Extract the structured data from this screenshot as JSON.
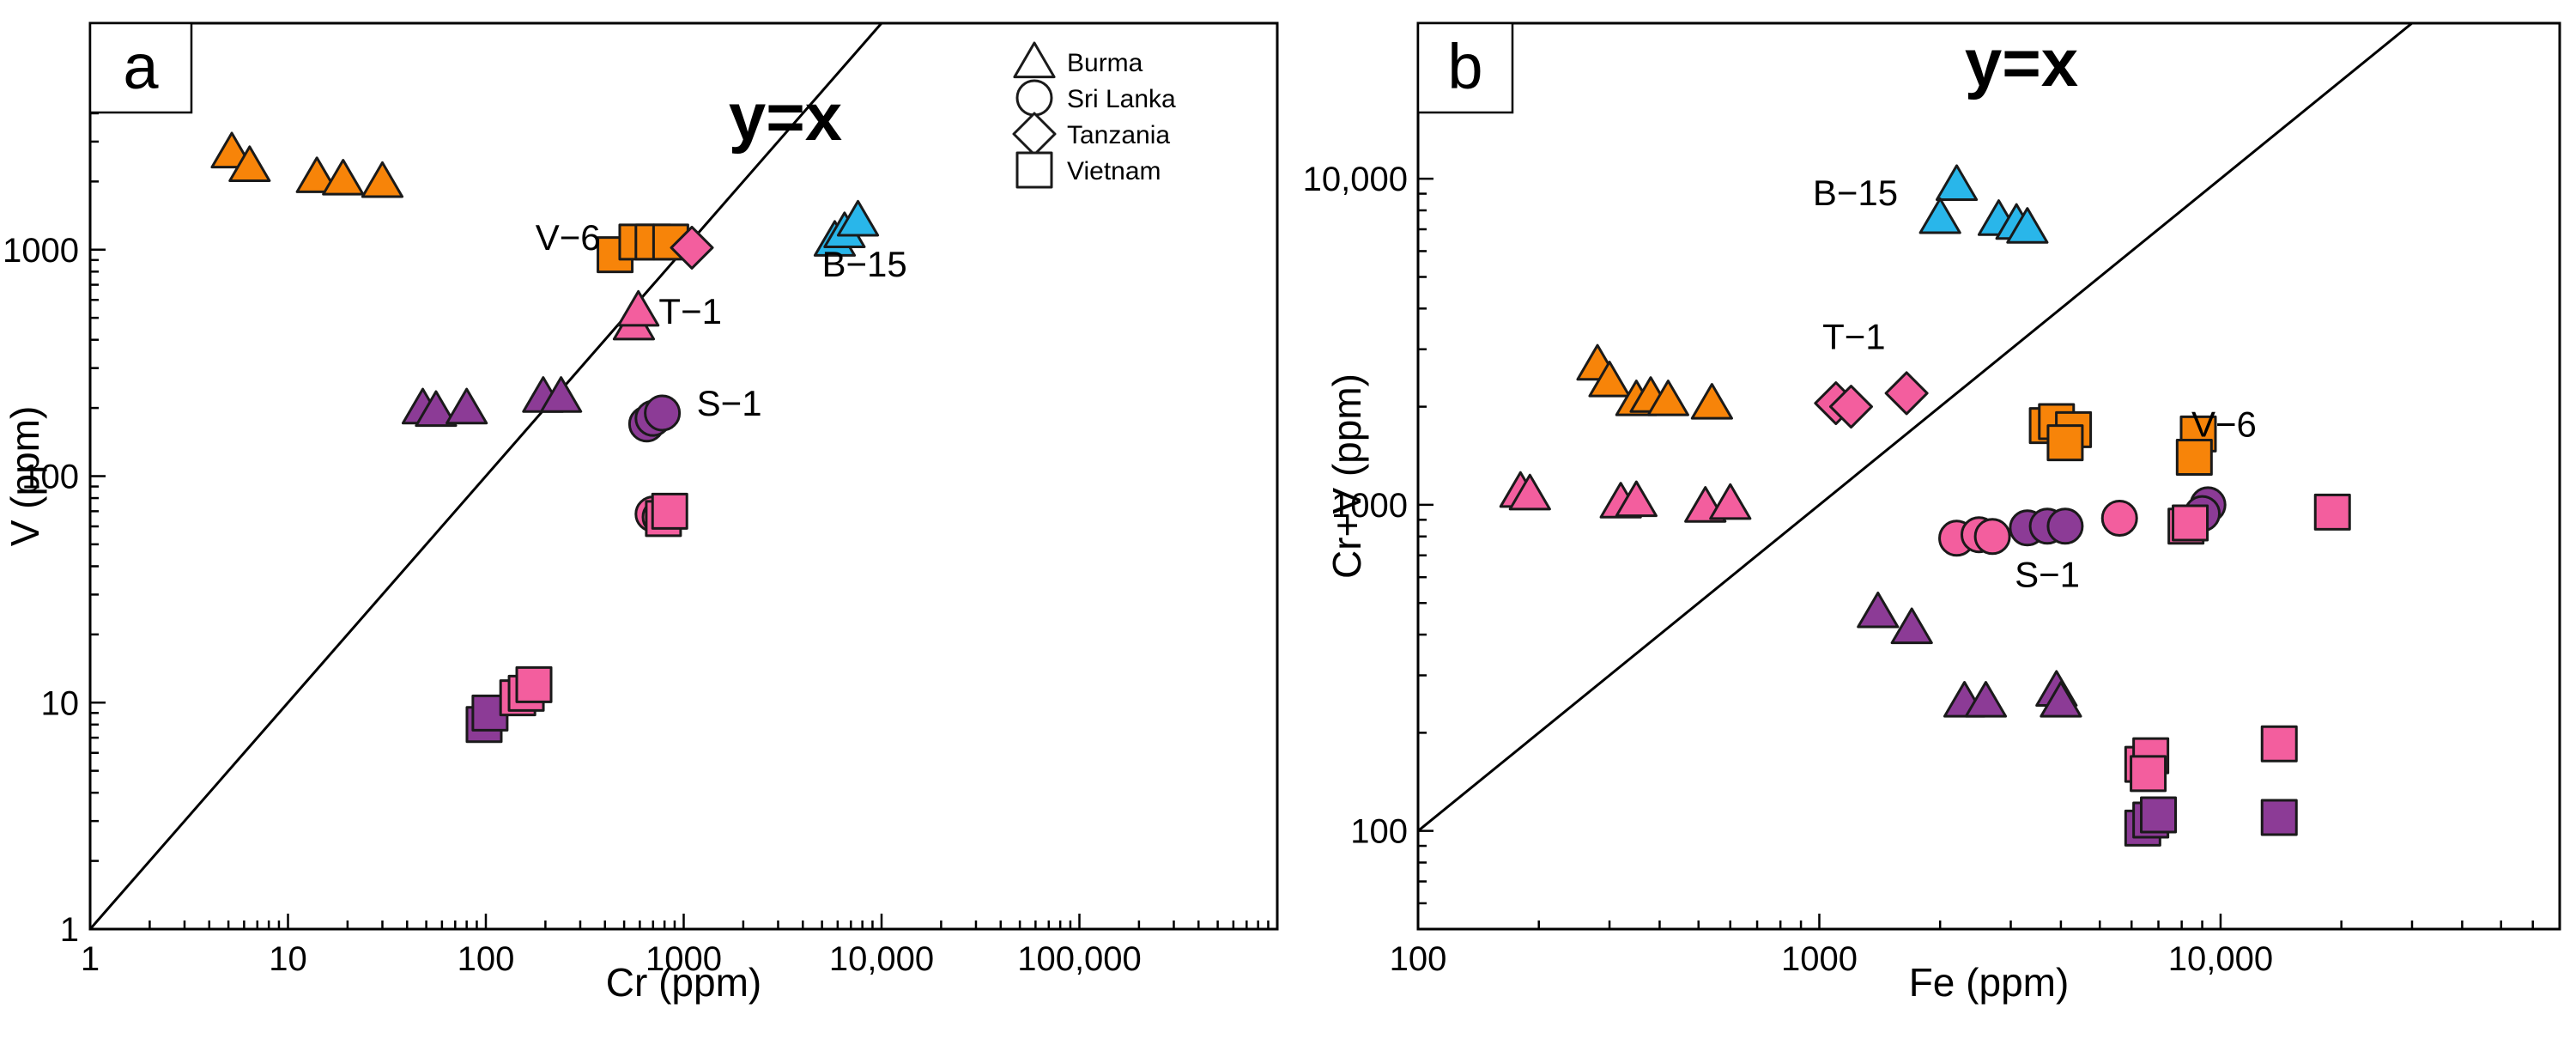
{
  "colors": {
    "orange": "#f78409",
    "blue": "#29b6ea",
    "pink": "#f35e9e",
    "purple": "#8c3b96",
    "outline": "#1a1a1a",
    "legend_fill": "#ffffff"
  },
  "legend": [
    {
      "label": "Burma",
      "marker": "triangle"
    },
    {
      "label": "Sri Lanka",
      "marker": "circle"
    },
    {
      "label": "Tanzania",
      "marker": "diamond"
    },
    {
      "label": "Vietnam",
      "marker": "square"
    }
  ],
  "chart_data": [
    {
      "panel": "a",
      "type": "scatter",
      "xscale": "log",
      "yscale": "log",
      "xlabel": "Cr (ppm)",
      "ylabel": "V (ppm)",
      "xlim": [
        1,
        1000000
      ],
      "ylim": [
        1,
        10000
      ],
      "xticks": [
        1,
        10,
        100,
        1000,
        10000,
        100000
      ],
      "xtick_labels": [
        "1",
        "10",
        "100",
        "1000",
        "10,000",
        "100,000"
      ],
      "yticks": [
        1,
        10,
        100,
        1000
      ],
      "ytick_labels": [
        "1",
        "10",
        "100",
        "1000"
      ],
      "reference_line": {
        "label": "y=x",
        "from": [
          1,
          1
        ],
        "to": [
          10000,
          10000
        ]
      },
      "points": [
        {
          "x": 5.2,
          "y": 2700,
          "marker": "triangle",
          "color": "orange"
        },
        {
          "x": 6.4,
          "y": 2350,
          "marker": "triangle",
          "color": "orange"
        },
        {
          "x": 14,
          "y": 2100,
          "marker": "triangle",
          "color": "orange"
        },
        {
          "x": 19,
          "y": 2050,
          "marker": "triangle",
          "color": "orange"
        },
        {
          "x": 30,
          "y": 2000,
          "marker": "triangle",
          "color": "orange"
        },
        {
          "x": 450,
          "y": 950,
          "marker": "square",
          "color": "orange"
        },
        {
          "x": 580,
          "y": 1080,
          "marker": "square",
          "color": "orange"
        },
        {
          "x": 700,
          "y": 1080,
          "marker": "square",
          "color": "orange"
        },
        {
          "x": 860,
          "y": 1080,
          "marker": "square",
          "color": "orange"
        },
        {
          "x": 1100,
          "y": 1020,
          "marker": "diamond",
          "color": "pink"
        },
        {
          "x": 560,
          "y": 470,
          "marker": "triangle",
          "color": "pink"
        },
        {
          "x": 590,
          "y": 540,
          "marker": "triangle",
          "color": "pink"
        },
        {
          "x": 5800,
          "y": 1100,
          "marker": "triangle",
          "color": "blue"
        },
        {
          "x": 6500,
          "y": 1200,
          "marker": "triangle",
          "color": "blue"
        },
        {
          "x": 7600,
          "y": 1350,
          "marker": "triangle",
          "color": "blue"
        },
        {
          "x": 48,
          "y": 200,
          "marker": "triangle",
          "color": "purple"
        },
        {
          "x": 56,
          "y": 195,
          "marker": "triangle",
          "color": "purple"
        },
        {
          "x": 80,
          "y": 200,
          "marker": "triangle",
          "color": "purple"
        },
        {
          "x": 195,
          "y": 225,
          "marker": "triangle",
          "color": "purple"
        },
        {
          "x": 240,
          "y": 225,
          "marker": "triangle",
          "color": "purple"
        },
        {
          "x": 650,
          "y": 170,
          "marker": "circle",
          "color": "purple"
        },
        {
          "x": 700,
          "y": 180,
          "marker": "circle",
          "color": "purple"
        },
        {
          "x": 780,
          "y": 190,
          "marker": "circle",
          "color": "purple"
        },
        {
          "x": 700,
          "y": 68,
          "marker": "circle",
          "color": "pink"
        },
        {
          "x": 760,
          "y": 66,
          "marker": "circle",
          "color": "pink"
        },
        {
          "x": 790,
          "y": 65,
          "marker": "square",
          "color": "pink"
        },
        {
          "x": 850,
          "y": 70,
          "marker": "square",
          "color": "pink"
        },
        {
          "x": 98,
          "y": 8,
          "marker": "square",
          "color": "purple"
        },
        {
          "x": 105,
          "y": 9,
          "marker": "square",
          "color": "purple"
        },
        {
          "x": 145,
          "y": 10.5,
          "marker": "square",
          "color": "pink"
        },
        {
          "x": 160,
          "y": 11,
          "marker": "square",
          "color": "pink"
        },
        {
          "x": 175,
          "y": 12,
          "marker": "square",
          "color": "pink"
        }
      ],
      "annotations": [
        {
          "text": "V−6",
          "x": 260,
          "y": 1000
        },
        {
          "text": "T−1",
          "x": 1080,
          "y": 470
        },
        {
          "text": "B−15",
          "x": 8200,
          "y": 760
        },
        {
          "text": "S−1",
          "x": 1700,
          "y": 185
        }
      ]
    },
    {
      "panel": "b",
      "type": "scatter",
      "xscale": "log",
      "yscale": "log",
      "xlabel": "Fe (ppm)",
      "ylabel": "Cr+V (ppm)",
      "xlim": [
        100,
        70000
      ],
      "ylim": [
        50,
        30000
      ],
      "xticks": [
        100,
        1000,
        10000
      ],
      "xtick_labels": [
        "100",
        "1000",
        "10,000"
      ],
      "yticks": [
        100,
        1000,
        10000
      ],
      "ytick_labels": [
        "100",
        "1000",
        "10,000"
      ],
      "reference_line": {
        "label": "y=x",
        "from": [
          100,
          100
        ],
        "to": [
          30000,
          30000
        ]
      },
      "points": [
        {
          "x": 2200,
          "y": 9600,
          "marker": "triangle",
          "color": "blue"
        },
        {
          "x": 2000,
          "y": 7600,
          "marker": "triangle",
          "color": "blue"
        },
        {
          "x": 2800,
          "y": 7500,
          "marker": "triangle",
          "color": "blue"
        },
        {
          "x": 3100,
          "y": 7300,
          "marker": "triangle",
          "color": "blue"
        },
        {
          "x": 3300,
          "y": 7100,
          "marker": "triangle",
          "color": "blue"
        },
        {
          "x": 280,
          "y": 2700,
          "marker": "triangle",
          "color": "orange"
        },
        {
          "x": 300,
          "y": 2400,
          "marker": "triangle",
          "color": "orange"
        },
        {
          "x": 350,
          "y": 2100,
          "marker": "triangle",
          "color": "orange"
        },
        {
          "x": 380,
          "y": 2150,
          "marker": "triangle",
          "color": "orange"
        },
        {
          "x": 420,
          "y": 2100,
          "marker": "triangle",
          "color": "orange"
        },
        {
          "x": 540,
          "y": 2050,
          "marker": "triangle",
          "color": "orange"
        },
        {
          "x": 180,
          "y": 1100,
          "marker": "triangle",
          "color": "pink"
        },
        {
          "x": 190,
          "y": 1080,
          "marker": "triangle",
          "color": "pink"
        },
        {
          "x": 320,
          "y": 1020,
          "marker": "triangle",
          "color": "pink"
        },
        {
          "x": 350,
          "y": 1030,
          "marker": "triangle",
          "color": "pink"
        },
        {
          "x": 520,
          "y": 990,
          "marker": "triangle",
          "color": "pink"
        },
        {
          "x": 600,
          "y": 1010,
          "marker": "triangle",
          "color": "pink"
        },
        {
          "x": 1100,
          "y": 2050,
          "marker": "diamond",
          "color": "pink"
        },
        {
          "x": 1200,
          "y": 2000,
          "marker": "diamond",
          "color": "pink"
        },
        {
          "x": 1650,
          "y": 2200,
          "marker": "diamond",
          "color": "pink"
        },
        {
          "x": 3700,
          "y": 1750,
          "marker": "square",
          "color": "orange"
        },
        {
          "x": 3900,
          "y": 1800,
          "marker": "square",
          "color": "orange"
        },
        {
          "x": 4300,
          "y": 1700,
          "marker": "square",
          "color": "orange"
        },
        {
          "x": 4100,
          "y": 1550,
          "marker": "square",
          "color": "orange"
        },
        {
          "x": 8800,
          "y": 1650,
          "marker": "square",
          "color": "orange"
        },
        {
          "x": 8600,
          "y": 1400,
          "marker": "square",
          "color": "orange"
        },
        {
          "x": 2200,
          "y": 790,
          "marker": "circle",
          "color": "pink"
        },
        {
          "x": 2500,
          "y": 810,
          "marker": "circle",
          "color": "pink"
        },
        {
          "x": 2700,
          "y": 800,
          "marker": "circle",
          "color": "pink"
        },
        {
          "x": 3300,
          "y": 850,
          "marker": "circle",
          "color": "purple"
        },
        {
          "x": 3700,
          "y": 860,
          "marker": "circle",
          "color": "purple"
        },
        {
          "x": 4100,
          "y": 860,
          "marker": "circle",
          "color": "purple"
        },
        {
          "x": 5600,
          "y": 910,
          "marker": "circle",
          "color": "pink"
        },
        {
          "x": 9300,
          "y": 1000,
          "marker": "circle",
          "color": "purple"
        },
        {
          "x": 9000,
          "y": 940,
          "marker": "circle",
          "color": "purple"
        },
        {
          "x": 8200,
          "y": 860,
          "marker": "square",
          "color": "pink"
        },
        {
          "x": 8400,
          "y": 880,
          "marker": "square",
          "color": "pink"
        },
        {
          "x": 19000,
          "y": 950,
          "marker": "square",
          "color": "pink"
        },
        {
          "x": 1400,
          "y": 470,
          "marker": "triangle",
          "color": "purple"
        },
        {
          "x": 1700,
          "y": 420,
          "marker": "triangle",
          "color": "purple"
        },
        {
          "x": 2300,
          "y": 250,
          "marker": "triangle",
          "color": "purple"
        },
        {
          "x": 2600,
          "y": 250,
          "marker": "triangle",
          "color": "purple"
        },
        {
          "x": 3900,
          "y": 270,
          "marker": "triangle",
          "color": "purple"
        },
        {
          "x": 4000,
          "y": 250,
          "marker": "triangle",
          "color": "purple"
        },
        {
          "x": 6400,
          "y": 160,
          "marker": "square",
          "color": "pink"
        },
        {
          "x": 6700,
          "y": 170,
          "marker": "square",
          "color": "pink"
        },
        {
          "x": 6600,
          "y": 150,
          "marker": "square",
          "color": "pink"
        },
        {
          "x": 14000,
          "y": 185,
          "marker": "square",
          "color": "pink"
        },
        {
          "x": 6400,
          "y": 102,
          "marker": "square",
          "color": "purple"
        },
        {
          "x": 6700,
          "y": 108,
          "marker": "square",
          "color": "purple"
        },
        {
          "x": 7000,
          "y": 112,
          "marker": "square",
          "color": "purple"
        },
        {
          "x": 14000,
          "y": 110,
          "marker": "square",
          "color": "purple"
        }
      ],
      "annotations": [
        {
          "text": "B−15",
          "x": 1230,
          "y": 8300
        },
        {
          "text": "T−1",
          "x": 1220,
          "y": 3000
        },
        {
          "text": "V−6",
          "x": 10200,
          "y": 1620
        },
        {
          "text": "S−1",
          "x": 3700,
          "y": 560
        }
      ]
    }
  ]
}
